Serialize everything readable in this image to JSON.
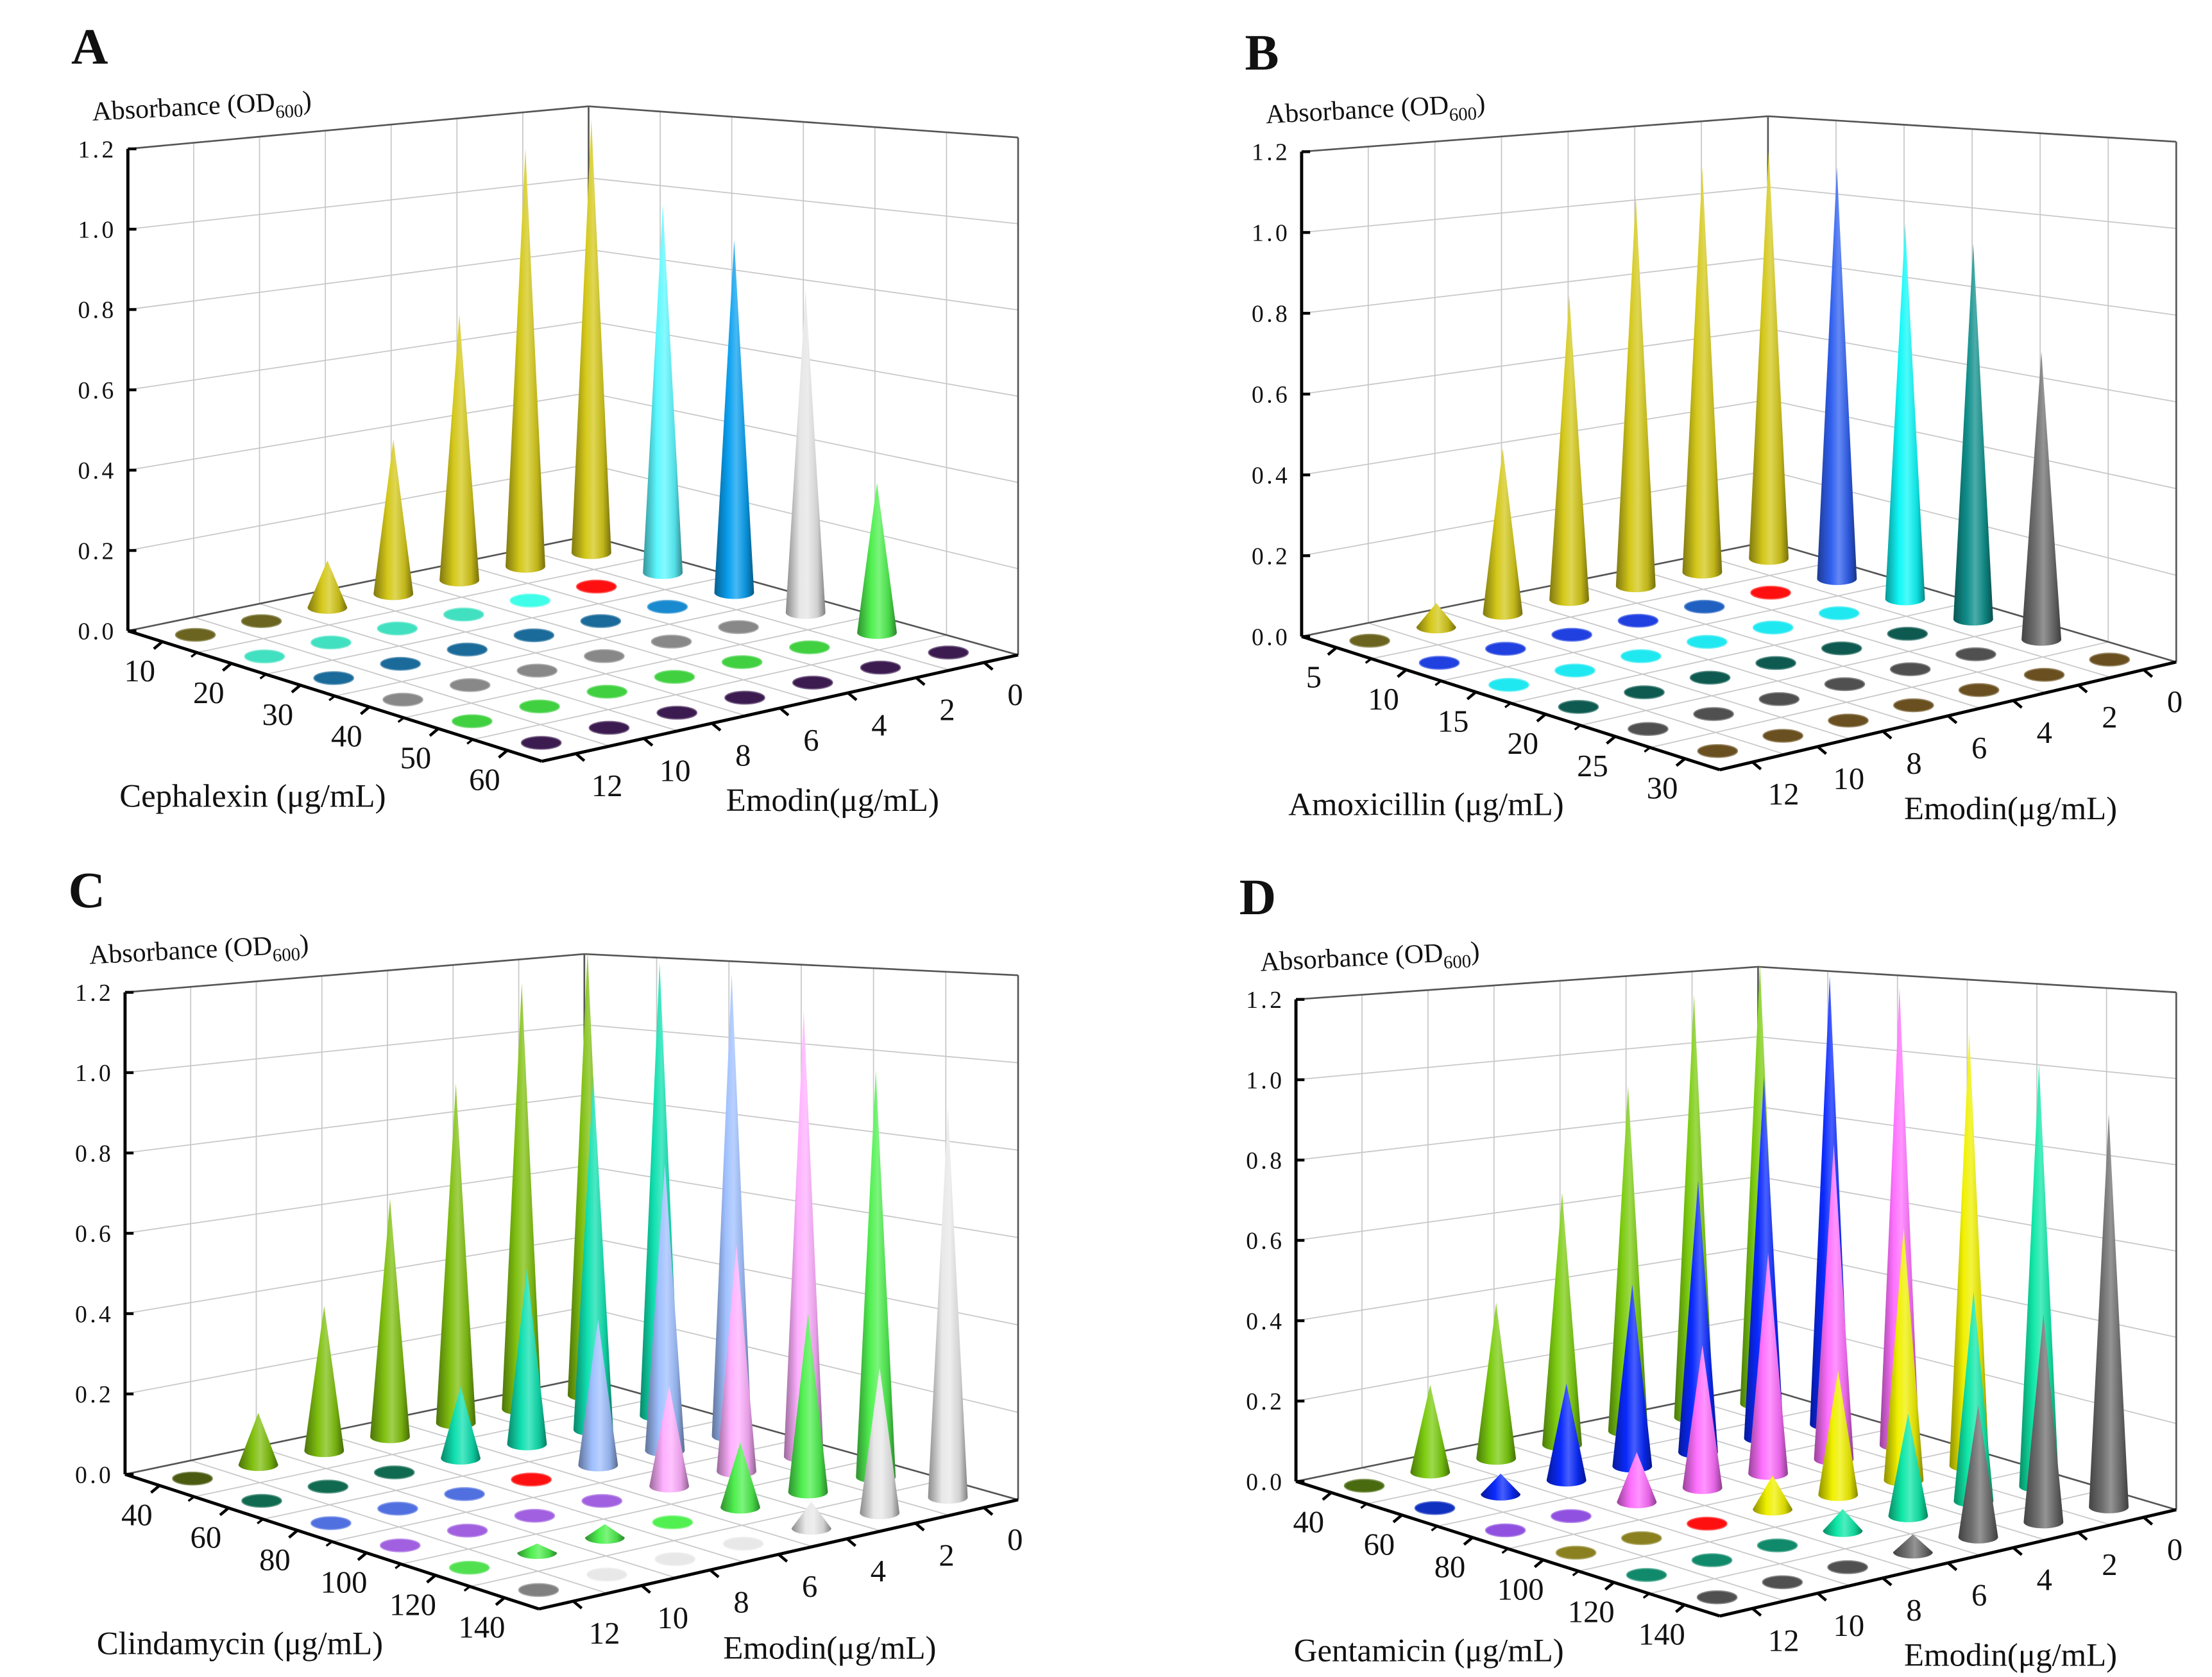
{
  "chart_data": [
    {
      "type": "3d-cone",
      "panel": "A",
      "zlabel": {
        "text": "Absorbance (OD",
        "sub": "600",
        "close": ")"
      },
      "z_ticks": [
        "0.0",
        "0.2",
        "0.4",
        "0.6",
        "0.8",
        "1.0",
        "1.2"
      ],
      "zlim": [
        0,
        1.2
      ],
      "xlabel": "Cephalexin (μg/mL)",
      "x_ticks": [
        "10",
        "20",
        "30",
        "40",
        "50",
        "60"
      ],
      "ylabel": "Emodin(μg/mL)",
      "y_ticks": [
        "12",
        "10",
        "8",
        "6",
        "4",
        "2",
        "0"
      ],
      "grid": true,
      "values": [
        [
          0,
          0,
          0.12,
          0.4,
          0.7,
          1.12,
          1.18
        ],
        [
          0,
          0,
          0,
          0,
          0,
          0,
          0.97
        ],
        [
          0,
          0,
          0,
          0,
          0,
          0,
          0.9
        ],
        [
          0,
          0,
          0,
          0,
          0,
          0,
          0.8
        ],
        [
          0,
          0,
          0,
          0,
          0,
          0,
          0.36
        ],
        [
          0,
          0,
          0,
          0,
          0,
          0,
          0
        ]
      ],
      "colors": [
        [
          "#6b6420",
          "#6b6420",
          "#d4c81a",
          "#d4c81a",
          "#d4c81a",
          "#d4c81a",
          "#d4c81a"
        ],
        [
          "#40e0c0",
          "#40e0c0",
          "#40e0c0",
          "#40e0c0",
          "#40ffe8",
          "#ff1010",
          "#5cf8ff"
        ],
        [
          "#1a6a9a",
          "#1a6a9a",
          "#1a6a9a",
          "#1a6a9a",
          "#1a6a9a",
          "#1a8ad0",
          "#0aa0f0"
        ],
        [
          "#888888",
          "#888888",
          "#888888",
          "#888888",
          "#888888",
          "#888888",
          "#e6e6e6"
        ],
        [
          "#40d040",
          "#40d040",
          "#40d040",
          "#40d040",
          "#40d040",
          "#40d040",
          "#50f050"
        ],
        [
          "#3c1c50",
          "#3c1c50",
          "#3c1c50",
          "#3c1c50",
          "#3c1c50",
          "#3c1c50",
          "#3c1c50"
        ]
      ]
    },
    {
      "type": "3d-cone",
      "panel": "B",
      "zlabel": {
        "text": "Absorbance (OD",
        "sub": "600",
        "close": ")"
      },
      "z_ticks": [
        "0.0",
        "0.2",
        "0.4",
        "0.6",
        "0.8",
        "1.0",
        "1.2"
      ],
      "zlim": [
        0,
        1.2
      ],
      "xlabel": "Amoxicillin (μg/mL)",
      "x_ticks": [
        "5",
        "10",
        "15",
        "20",
        "25",
        "30"
      ],
      "ylabel": "Emodin(μg/mL)",
      "y_ticks": [
        "12",
        "10",
        "8",
        "6",
        "4",
        "2",
        "0"
      ],
      "grid": true,
      "values": [
        [
          0,
          0.06,
          0.42,
          0.79,
          1.03,
          1.09,
          1.12
        ],
        [
          0,
          0,
          0,
          0,
          0,
          0,
          1.09
        ],
        [
          0,
          0,
          0,
          0,
          0,
          0,
          0.96
        ],
        [
          0,
          0,
          0,
          0,
          0,
          0,
          0.93
        ],
        [
          0,
          0,
          0,
          0,
          0,
          0,
          0.69
        ],
        [
          0,
          0,
          0,
          0,
          0,
          0,
          0
        ]
      ],
      "colors": [
        [
          "#6a6420",
          "#d4c81a",
          "#d4c81a",
          "#d4c81a",
          "#d4c81a",
          "#d4c81a",
          "#d4c81a"
        ],
        [
          "#2040e0",
          "#2040e0",
          "#2040e0",
          "#2040e0",
          "#2060c0",
          "#ff1010",
          "#3060f0"
        ],
        [
          "#20e8f0",
          "#20e8f0",
          "#20e8f0",
          "#20e8f0",
          "#20e8f0",
          "#20e8f0",
          "#10f8f8"
        ],
        [
          "#0e5a50",
          "#0e5a50",
          "#0e5a50",
          "#0e5a50",
          "#0e5a50",
          "#0e5a50",
          "#10908c"
        ],
        [
          "#505050",
          "#505050",
          "#505050",
          "#505050",
          "#505050",
          "#505050",
          "#707070"
        ],
        [
          "#6a5020",
          "#6a5020",
          "#6a5020",
          "#6a5020",
          "#6a5020",
          "#6a5020",
          "#6a5020"
        ]
      ]
    },
    {
      "type": "3d-cone",
      "panel": "C",
      "zlabel": {
        "text": "Absorbance (OD",
        "sub": "600",
        "close": ")"
      },
      "z_ticks": [
        "0.0",
        "0.2",
        "0.4",
        "0.6",
        "0.8",
        "1.0",
        "1.2"
      ],
      "zlim": [
        0,
        1.2
      ],
      "xlabel": "Clindamycin (μg/mL)",
      "x_ticks": [
        "40",
        "60",
        "80",
        "100",
        "120",
        "140"
      ],
      "ylabel": "Emodin(μg/mL)",
      "y_ticks": [
        "12",
        "10",
        "8",
        "6",
        "4",
        "2",
        "0"
      ],
      "grid": true,
      "values": [
        [
          0,
          0.13,
          0.37,
          0.62,
          0.9,
          1.15,
          1.22
        ],
        [
          0,
          0,
          0,
          0.18,
          0.45,
          0.92,
          1.2
        ],
        [
          0,
          0,
          0,
          0,
          0.36,
          0.72,
          1.18
        ],
        [
          0,
          0,
          0,
          0,
          0.24,
          0.55,
          1.1
        ],
        [
          0,
          0.02,
          0.03,
          0,
          0.15,
          0.42,
          0.97
        ],
        [
          0,
          0.01,
          0,
          0,
          0.06,
          0.33,
          0.9
        ]
      ],
      "colors": [
        [
          "#4a5a10",
          "#80c010",
          "#80c010",
          "#80c010",
          "#80c010",
          "#80c010",
          "#80c010"
        ],
        [
          "#106a50",
          "#106a50",
          "#106a50",
          "#10e0b0",
          "#10e0b0",
          "#10e0b0",
          "#10e0b0"
        ],
        [
          "#5070e0",
          "#5070e0",
          "#5070e0",
          "#ff1010",
          "#a0c0ff",
          "#a0c0ff",
          "#a0c0ff"
        ],
        [
          "#a060e0",
          "#a060e0",
          "#a060e0",
          "#a060e0",
          "#ffb0ff",
          "#ffb0ff",
          "#ffb0ff"
        ],
        [
          "#50e050",
          "#50f050",
          "#50f050",
          "#50f050",
          "#50f050",
          "#50f050",
          "#50f050"
        ],
        [
          "#808080",
          "#e8e8e8",
          "#e8e8e8",
          "#e8e8e8",
          "#e8e8e8",
          "#e8e8e8",
          "#e8e8e8"
        ]
      ]
    },
    {
      "type": "3d-cone",
      "panel": "D",
      "zlabel": {
        "text": "Absorbance (OD",
        "sub": "600",
        "close": ")"
      },
      "z_ticks": [
        "0.0",
        "0.2",
        "0.4",
        "0.6",
        "0.8",
        "1.0",
        "1.2"
      ],
      "zlim": [
        0,
        1.2
      ],
      "xlabel": "Gentamicin (μg/mL)",
      "x_ticks": [
        "40",
        "60",
        "80",
        "100",
        "120",
        "140"
      ],
      "ylabel": "Emodin(μg/mL)",
      "y_ticks": [
        "12",
        "10",
        "8",
        "6",
        "4",
        "2",
        "0"
      ],
      "grid": true,
      "values": [
        [
          0,
          0.22,
          0.4,
          0.66,
          0.92,
          1.15,
          1.22
        ],
        [
          0,
          0.05,
          0.24,
          0.46,
          0.7,
          0.95,
          1.2
        ],
        [
          0,
          0,
          0.12,
          0.35,
          0.55,
          0.8,
          1.18
        ],
        [
          0,
          0,
          0,
          0.08,
          0.3,
          0.62,
          1.08
        ],
        [
          0,
          0,
          0,
          0.05,
          0.24,
          0.5,
          1.02
        ],
        [
          0,
          0,
          0,
          0.04,
          0.3,
          0.48,
          0.92
        ]
      ],
      "colors": [
        [
          "#4a6a10",
          "#7ccc10",
          "#7ccc10",
          "#7ccc10",
          "#7ccc10",
          "#7ccc10",
          "#7ccc10"
        ],
        [
          "#1030c0",
          "#0a2aff",
          "#0a2aff",
          "#0a2aff",
          "#0a2aff",
          "#0a2aff",
          "#0a2aff"
        ],
        [
          "#9050e0",
          "#9050e0",
          "#ff70ff",
          "#ff70ff",
          "#ff70ff",
          "#ff70ff",
          "#ff70ff"
        ],
        [
          "#8a8020",
          "#8a8020",
          "#ff1010",
          "#f0f000",
          "#f0f000",
          "#f0f000",
          "#f0f000"
        ],
        [
          "#108a6a",
          "#108a6a",
          "#108a6a",
          "#10e8a8",
          "#10e8a8",
          "#10e8a8",
          "#10e8a8"
        ],
        [
          "#505050",
          "#505050",
          "#505050",
          "#707070",
          "#707070",
          "#707070",
          "#707070"
        ]
      ]
    }
  ]
}
